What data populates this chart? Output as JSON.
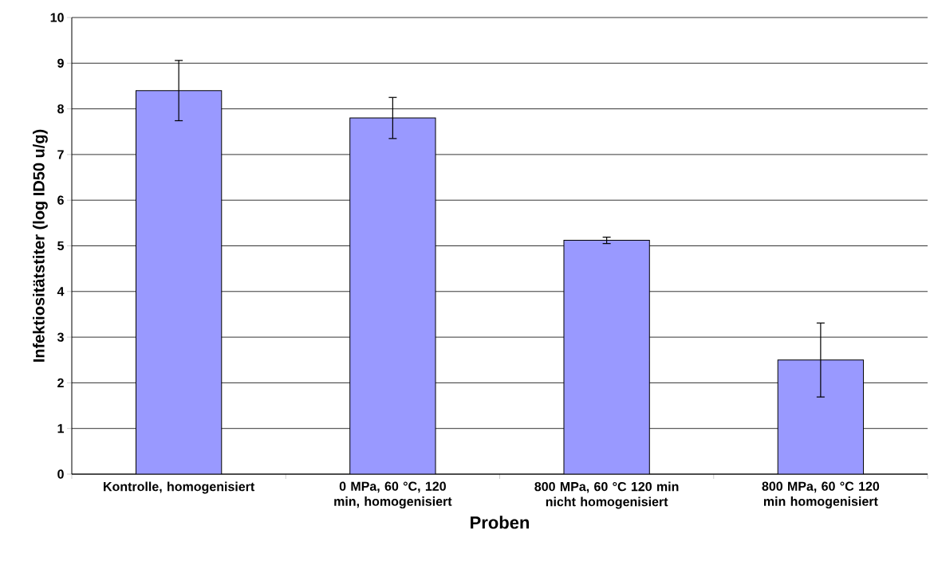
{
  "chart_data": {
    "type": "bar",
    "xlabel": "Proben",
    "ylabel": "Infektiositätstiter (log ID50 u/g)",
    "categories": [
      "Kontrolle,  homogenisiert",
      "0 MPa, 60 °C, 120 min, homogenisiert",
      "800 MPa, 60 °C 120 min nicht homogenisiert",
      "800 MPa, 60 °C 120 min homogenisiert"
    ],
    "values": [
      8.4,
      7.8,
      5.12,
      2.5
    ],
    "errors": [
      0.66,
      0.45,
      0.07,
      0.81
    ],
    "color": "#9999ff",
    "ylim": [
      0,
      10
    ],
    "yticks": [
      0,
      1,
      2,
      3,
      4,
      5,
      6,
      7,
      8,
      9,
      10
    ],
    "grid": "y"
  }
}
